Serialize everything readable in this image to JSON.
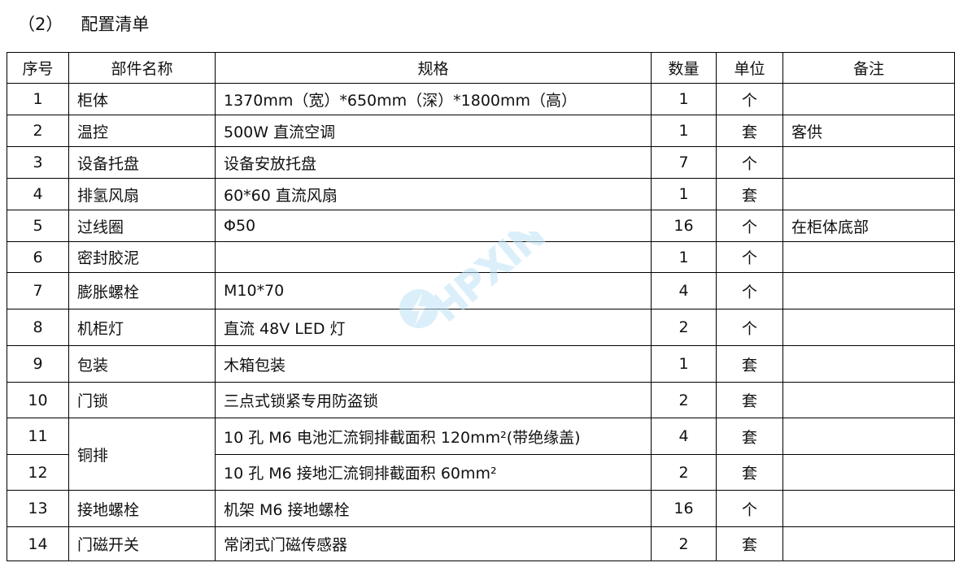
{
  "section": {
    "number": "（2）",
    "title": "配置清单"
  },
  "headers": [
    "序号",
    "部件名称",
    "规格",
    "数量",
    "单位",
    "备注"
  ],
  "rows": [
    {
      "no": "1",
      "name": "柜体",
      "spec": "1370mm（宽）*650mm（深）*1800mm（高）",
      "qty": "1",
      "unit": "个",
      "note": ""
    },
    {
      "no": "2",
      "name": "温控",
      "spec": "500W 直流空调",
      "qty": "1",
      "unit": "套",
      "note": "客供"
    },
    {
      "no": "3",
      "name": "设备托盘",
      "spec": "设备安放托盘",
      "qty": "7",
      "unit": "个",
      "note": ""
    },
    {
      "no": "4",
      "name": "排氢风扇",
      "spec": "60*60 直流风扇",
      "qty": "1",
      "unit": "套",
      "note": ""
    },
    {
      "no": "5",
      "name": "过线圈",
      "spec": "Φ50",
      "qty": "16",
      "unit": "个",
      "note": "在柜体底部"
    },
    {
      "no": "6",
      "name": "密封胶泥",
      "spec": "",
      "qty": "1",
      "unit": "个",
      "note": ""
    },
    {
      "no": "7",
      "name": "膨胀螺栓",
      "spec": "M10*70",
      "qty": "4",
      "unit": "个",
      "note": ""
    },
    {
      "no": "8",
      "name": "机柜灯",
      "spec": "直流 48V LED 灯",
      "qty": "2",
      "unit": "个",
      "note": ""
    },
    {
      "no": "9",
      "name": "包装",
      "spec": "木箱包装",
      "qty": "1",
      "unit": "套",
      "note": ""
    },
    {
      "no": "10",
      "name": "门锁",
      "spec": "三点式锁紧专用防盗锁",
      "qty": "2",
      "unit": "套",
      "note": ""
    },
    {
      "no": "11",
      "name": "铜排",
      "spec": "10 孔 M6 电池汇流铜排截面积 120mm²(带绝缘盖)",
      "qty": "4",
      "unit": "套",
      "note": ""
    },
    {
      "no": "12",
      "name": "铜排",
      "spec": "10 孔 M6 接地汇流铜排截面积 60mm²",
      "qty": "2",
      "unit": "套",
      "note": ""
    },
    {
      "no": "13",
      "name": "接地螺栓",
      "spec": "机架 M6 接地螺栓",
      "qty": "16",
      "unit": "个",
      "note": ""
    },
    {
      "no": "14",
      "name": "门磁开关",
      "spec": "常闭式门磁传感器",
      "qty": "2",
      "unit": "套",
      "note": ""
    }
  ],
  "watermark": {
    "text": "HPXIN",
    "color": "#bfe3f7"
  }
}
